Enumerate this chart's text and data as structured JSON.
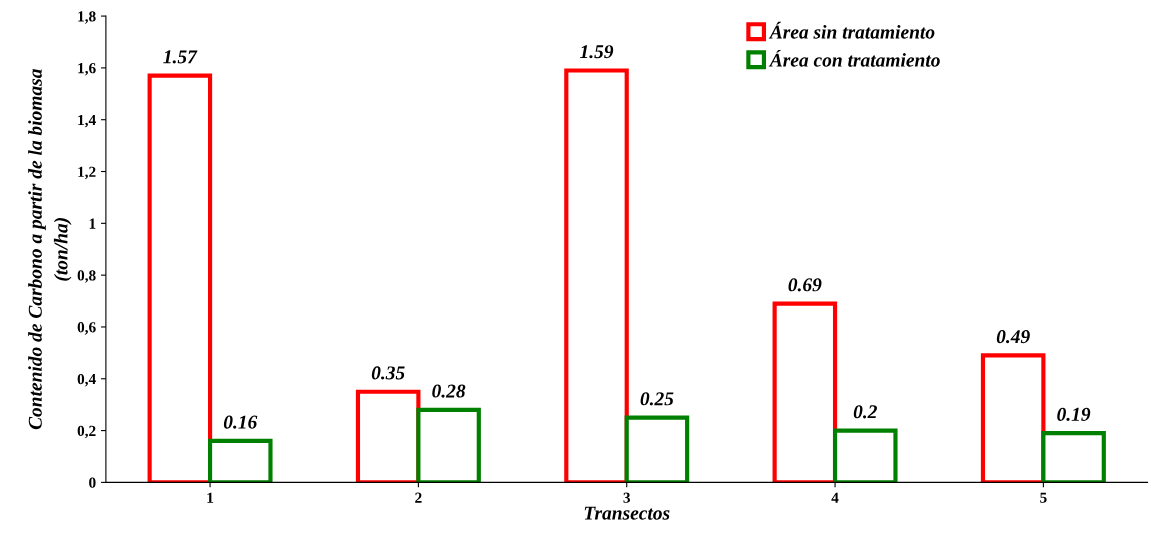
{
  "chart_data": {
    "type": "bar",
    "xlabel": "Transectos",
    "ylabel": "Contenido de Carbono a partir de la biomasa\n(ton/ha)",
    "categories": [
      "1",
      "2",
      "3",
      "4",
      "5"
    ],
    "series": [
      {
        "name": "Área sin tratamiento",
        "color": "#ff0000",
        "values": [
          1.57,
          0.35,
          1.59,
          0.69,
          0.49
        ]
      },
      {
        "name": "Área con tratamiento",
        "color": "#008000",
        "values": [
          0.16,
          0.28,
          0.25,
          0.2,
          0.19
        ]
      }
    ],
    "ylim": [
      0,
      1.8
    ],
    "yticks": [
      0,
      {
        "value": 0.2,
        "label": "0,2"
      },
      {
        "value": 0.4,
        "label": "0,4"
      },
      {
        "value": 0.6,
        "label": "0,6"
      },
      {
        "value": 0.8,
        "label": "0,8"
      },
      1,
      {
        "value": 1.2,
        "label": "1,2"
      },
      {
        "value": 1.4,
        "label": "1,4"
      },
      {
        "value": 1.6,
        "label": "1,6"
      },
      {
        "value": 1.8,
        "label": "1,8"
      }
    ],
    "data_labels": true,
    "grid": false,
    "legend": "top right"
  }
}
